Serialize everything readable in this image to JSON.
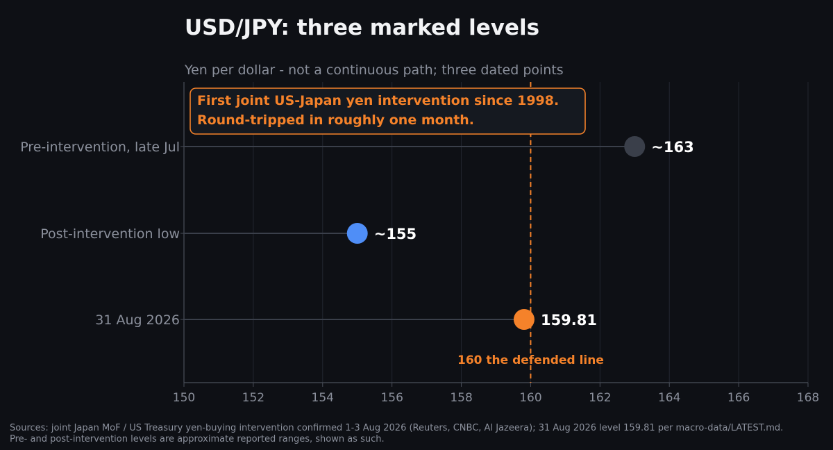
{
  "chart_data": {
    "type": "scatter",
    "title": "USD/JPY: three marked levels",
    "subtitle": "Yen per dollar - not a continuous path; three dated points",
    "xlabel": "",
    "ylabel": "",
    "xlim": [
      150,
      168
    ],
    "xticks": [
      150,
      152,
      154,
      156,
      158,
      160,
      162,
      164,
      166,
      168
    ],
    "grid": true,
    "points": [
      {
        "category": "Pre-intervention, late Jul",
        "value": 163,
        "label": "~163",
        "color": "#3a3f4a"
      },
      {
        "category": "Post-intervention low",
        "value": 155,
        "label": "~155",
        "color": "#4f8ef7"
      },
      {
        "category": "31 Aug 2026",
        "value": 159.81,
        "label": "159.81",
        "color": "#f5822a"
      }
    ],
    "reference_line": {
      "value": 160,
      "label": "160  the defended line",
      "color": "#f5822a",
      "style": "dashed"
    },
    "annotation": {
      "lines": [
        "First joint US-Japan yen intervention since 1998.",
        "Round-tripped in roughly one month."
      ],
      "color": "#f5822a"
    }
  },
  "footnote": "Sources: joint Japan MoF / US Treasury yen-buying intervention confirmed 1-3 Aug 2026 (Reuters, CNBC, Al Jazeera); 31 Aug 2026 level 159.81 per macro-data/LATEST.md. Pre- and post-intervention levels are approximate reported ranges, shown as such.",
  "colors": {
    "background": "#0e1015",
    "grid": "#232630",
    "axis": "#4a4f5a",
    "stem": "#3a3f4a",
    "accent": "#f5822a"
  }
}
